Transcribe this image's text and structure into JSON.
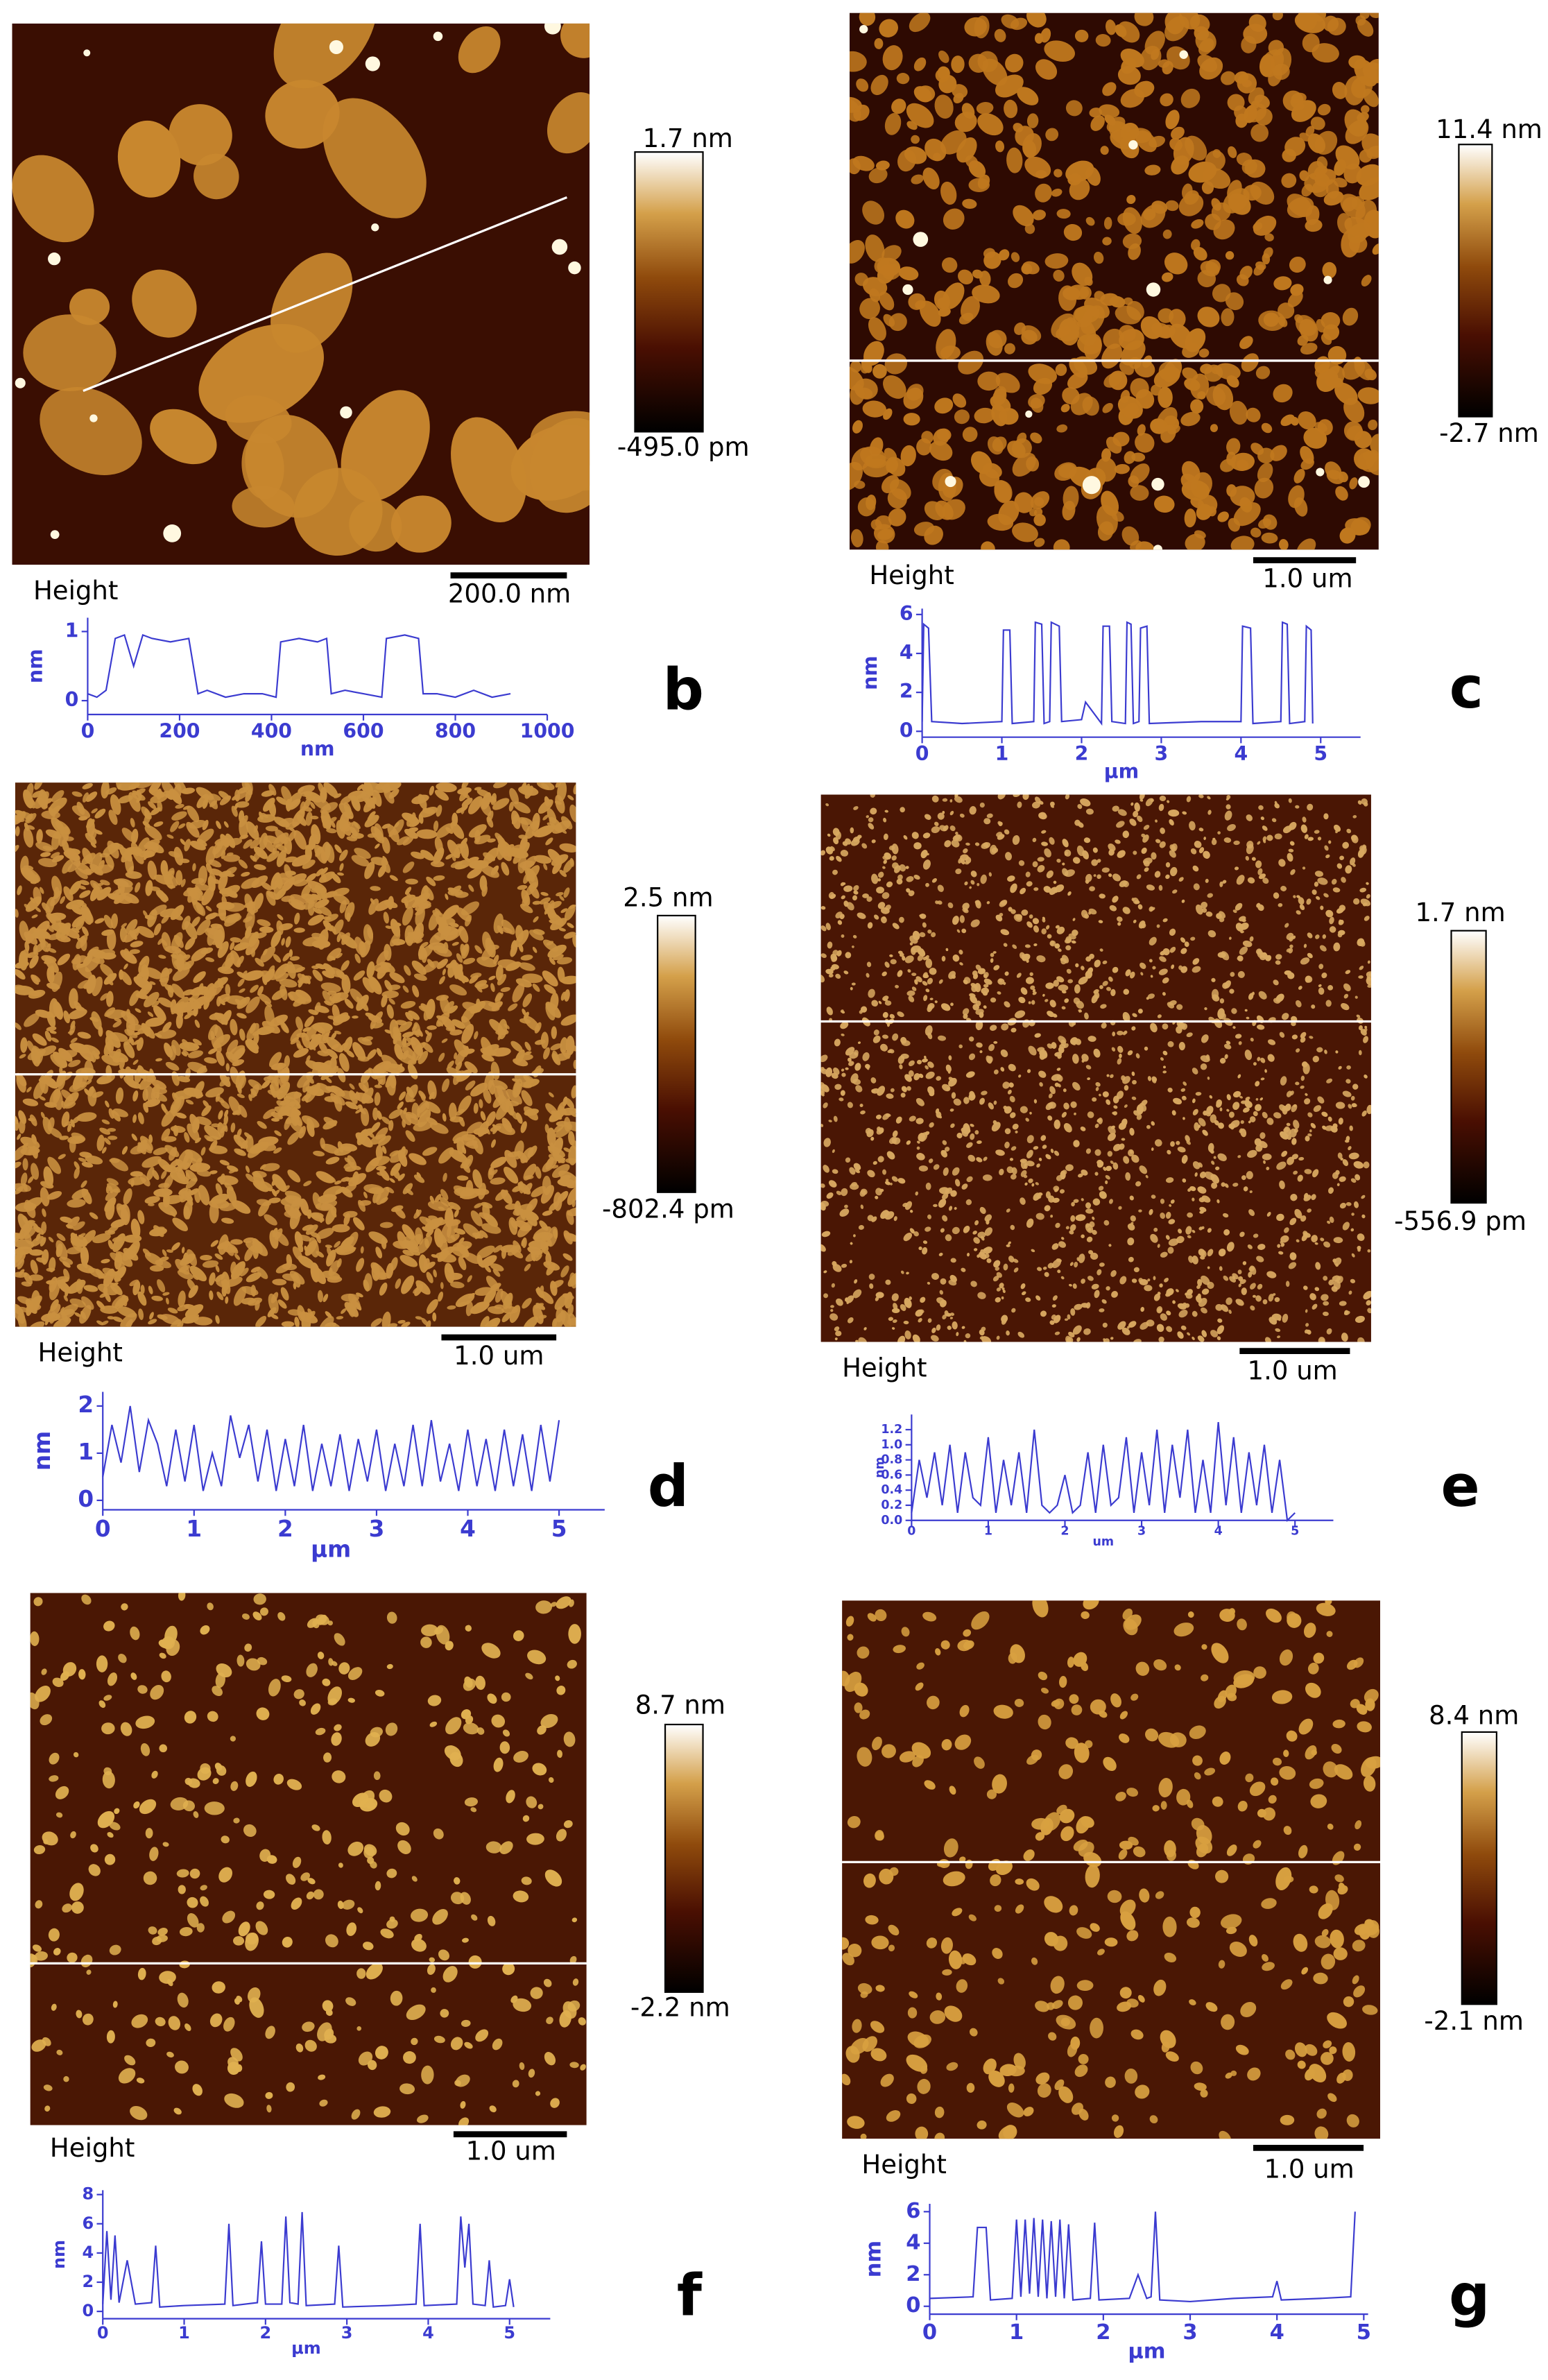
{
  "panels": [
    {
      "letter": "b",
      "height": "Height",
      "scalebar": "200.0 nm",
      "colorbar_max": "1.7 nm",
      "colorbar_min": "-495.0 pm"
    },
    {
      "letter": "c",
      "height": "Height",
      "scalebar": "1.0 um",
      "colorbar_max": "11.4 nm",
      "colorbar_min": "-2.7 nm"
    },
    {
      "letter": "d",
      "height": "Height",
      "scalebar": "1.0 um",
      "colorbar_max": "2.5 nm",
      "colorbar_min": "-802.4 pm"
    },
    {
      "letter": "e",
      "height": "Height",
      "scalebar": "1.0 um",
      "colorbar_max": "1.7 nm",
      "colorbar_min": "-556.9 pm"
    },
    {
      "letter": "f",
      "height": "Height",
      "scalebar": "1.0 um",
      "colorbar_max": "8.7 nm",
      "colorbar_min": "-2.2 nm"
    },
    {
      "letter": "g",
      "height": "Height",
      "scalebar": "1.0 um",
      "colorbar_max": "8.4 nm",
      "colorbar_min": "-2.1 nm"
    }
  ],
  "chart_data": [
    {
      "type": "line",
      "xlabel": "nm",
      "ylabel": "nm",
      "color": "#3b3bd0",
      "xlim": [
        0,
        1000
      ],
      "ylim": [
        -0.2,
        1.2
      ],
      "xticks": [
        0,
        200,
        400,
        600,
        800,
        1000
      ],
      "yticks": [
        0,
        1
      ],
      "x": [
        0,
        20,
        40,
        60,
        80,
        100,
        120,
        140,
        180,
        220,
        240,
        260,
        300,
        340,
        380,
        410,
        420,
        460,
        500,
        520,
        530,
        560,
        600,
        640,
        650,
        690,
        720,
        730,
        760,
        800,
        840,
        880,
        920
      ],
      "values": [
        0.1,
        0.05,
        0.15,
        0.9,
        0.95,
        0.5,
        0.95,
        0.9,
        0.85,
        0.9,
        0.1,
        0.15,
        0.05,
        0.1,
        0.1,
        0.05,
        0.85,
        0.9,
        0.85,
        0.9,
        0.1,
        0.15,
        0.1,
        0.05,
        0.9,
        0.95,
        0.9,
        0.1,
        0.1,
        0.05,
        0.15,
        0.05,
        0.1
      ]
    },
    {
      "type": "line",
      "xlabel": "µm",
      "ylabel": "nm",
      "color": "#3b3bd0",
      "xlim": [
        0,
        5.5
      ],
      "ylim": [
        -0.3,
        6.3
      ],
      "xticks": [
        0,
        1,
        2,
        3,
        4,
        5
      ],
      "yticks": [
        0,
        2,
        4,
        6
      ],
      "x": [
        0,
        0.02,
        0.08,
        0.12,
        0.5,
        1.0,
        1.02,
        1.1,
        1.13,
        1.4,
        1.42,
        1.5,
        1.53,
        1.6,
        1.62,
        1.72,
        1.75,
        2.0,
        2.05,
        2.25,
        2.27,
        2.35,
        2.38,
        2.55,
        2.57,
        2.62,
        2.65,
        2.72,
        2.74,
        2.82,
        2.85,
        3.5,
        4.0,
        4.02,
        4.12,
        4.15,
        4.5,
        4.52,
        4.58,
        4.61,
        4.8,
        4.82,
        4.88,
        4.9
      ],
      "values": [
        0.5,
        5.5,
        5.3,
        0.5,
        0.4,
        0.5,
        5.2,
        5.2,
        0.4,
        0.5,
        5.6,
        5.5,
        0.4,
        0.5,
        5.6,
        5.4,
        0.5,
        0.6,
        1.5,
        0.4,
        5.4,
        5.4,
        0.5,
        0.4,
        5.6,
        5.5,
        0.4,
        0.5,
        5.3,
        5.4,
        0.4,
        0.5,
        0.5,
        5.4,
        5.3,
        0.4,
        0.5,
        5.6,
        5.5,
        0.4,
        0.5,
        5.4,
        5.2,
        0.4
      ]
    },
    {
      "type": "line",
      "xlabel": "μm",
      "ylabel": "nm",
      "color": "#3b3bd0",
      "xlim": [
        0,
        5.5
      ],
      "ylim": [
        -0.2,
        2.3
      ],
      "xticks": [
        0,
        1,
        2,
        3,
        4,
        5
      ],
      "yticks": [
        0,
        1,
        2
      ],
      "x": [
        0,
        0.1,
        0.2,
        0.3,
        0.4,
        0.5,
        0.6,
        0.7,
        0.8,
        0.9,
        1.0,
        1.1,
        1.2,
        1.3,
        1.4,
        1.5,
        1.6,
        1.7,
        1.8,
        1.9,
        2.0,
        2.1,
        2.2,
        2.3,
        2.4,
        2.5,
        2.6,
        2.7,
        2.8,
        2.9,
        3.0,
        3.1,
        3.2,
        3.3,
        3.4,
        3.5,
        3.6,
        3.7,
        3.8,
        3.9,
        4.0,
        4.1,
        4.2,
        4.3,
        4.4,
        4.5,
        4.6,
        4.7,
        4.8,
        4.9,
        5.0
      ],
      "values": [
        0.5,
        1.6,
        0.8,
        2.0,
        0.6,
        1.7,
        1.2,
        0.3,
        1.5,
        0.4,
        1.6,
        0.2,
        1.0,
        0.3,
        1.8,
        0.9,
        1.6,
        0.4,
        1.5,
        0.2,
        1.3,
        0.3,
        1.6,
        0.2,
        1.2,
        0.3,
        1.4,
        0.2,
        1.3,
        0.4,
        1.5,
        0.2,
        1.2,
        0.3,
        1.6,
        0.3,
        1.7,
        0.4,
        1.2,
        0.2,
        1.5,
        0.3,
        1.3,
        0.2,
        1.5,
        0.3,
        1.4,
        0.2,
        1.6,
        0.4,
        1.7
      ]
    },
    {
      "type": "line",
      "xlabel": "um",
      "ylabel": "nm",
      "color": "#3b3bd0",
      "xlim": [
        0,
        5.5
      ],
      "ylim": [
        0,
        1.4
      ],
      "xticks": [
        0,
        1,
        2,
        3,
        4,
        5
      ],
      "yticks": [
        {
          "value": 0,
          "label": "0.0"
        },
        0.2,
        0.4,
        0.6,
        0.8,
        {
          "value": 1,
          "label": "1.0"
        },
        1.2
      ],
      "x": [
        0,
        0.1,
        0.2,
        0.3,
        0.4,
        0.5,
        0.6,
        0.7,
        0.8,
        0.9,
        1.0,
        1.1,
        1.2,
        1.3,
        1.4,
        1.5,
        1.6,
        1.7,
        1.8,
        1.9,
        2.0,
        2.1,
        2.2,
        2.3,
        2.4,
        2.5,
        2.6,
        2.7,
        2.8,
        2.9,
        3.0,
        3.1,
        3.2,
        3.3,
        3.4,
        3.5,
        3.6,
        3.7,
        3.8,
        3.9,
        4.0,
        4.1,
        4.2,
        4.3,
        4.4,
        4.5,
        4.6,
        4.7,
        4.8,
        4.9,
        5.0
      ],
      "values": [
        0.1,
        0.8,
        0.3,
        0.9,
        0.2,
        1.0,
        0.1,
        0.9,
        0.3,
        0.2,
        1.1,
        0.1,
        0.8,
        0.2,
        0.9,
        0.1,
        1.2,
        0.2,
        0.1,
        0.2,
        0.6,
        0.1,
        0.2,
        0.9,
        0.1,
        1.0,
        0.2,
        0.3,
        1.1,
        0.1,
        0.9,
        0.2,
        1.2,
        0.1,
        1.0,
        0.3,
        1.2,
        0.1,
        0.8,
        0.1,
        1.3,
        0.2,
        1.1,
        0.1,
        0.9,
        0.2,
        1.0,
        0.1,
        0.8,
        0.0,
        0.1
      ]
    },
    {
      "type": "line",
      "xlabel": "μm",
      "ylabel": "nm",
      "color": "#3b3bd0",
      "xlim": [
        0,
        5.5
      ],
      "ylim": [
        -0.5,
        8.3
      ],
      "xticks": [
        0,
        1,
        2,
        3,
        4,
        5
      ],
      "yticks": [
        0,
        2,
        4,
        6,
        8
      ],
      "x": [
        0,
        0.05,
        0.1,
        0.15,
        0.2,
        0.3,
        0.4,
        0.6,
        0.65,
        0.7,
        1.0,
        1.5,
        1.55,
        1.6,
        1.9,
        1.95,
        2.0,
        2.2,
        2.25,
        2.3,
        2.4,
        2.45,
        2.5,
        2.85,
        2.9,
        2.95,
        3.5,
        3.85,
        3.9,
        3.95,
        4.35,
        4.4,
        4.45,
        4.5,
        4.55,
        4.7,
        4.75,
        4.8,
        4.95,
        5.0,
        5.05
      ],
      "values": [
        0.5,
        5.5,
        0.8,
        5.2,
        0.6,
        3.5,
        0.5,
        0.6,
        4.5,
        0.3,
        0.4,
        0.5,
        6.0,
        0.4,
        0.6,
        4.8,
        0.5,
        0.5,
        6.5,
        0.6,
        0.5,
        6.8,
        0.4,
        0.5,
        4.5,
        0.3,
        0.4,
        0.5,
        6.0,
        0.4,
        0.5,
        6.5,
        3.0,
        6.0,
        0.5,
        0.4,
        3.5,
        0.3,
        0.4,
        2.2,
        0.3
      ]
    },
    {
      "type": "line",
      "xlabel": "μm",
      "ylabel": "nm",
      "color": "#3b3bd0",
      "xlim": [
        0,
        5.05
      ],
      "ylim": [
        -0.5,
        6.5
      ],
      "xticks": [
        0,
        1,
        2,
        3,
        4,
        5
      ],
      "yticks": [
        0,
        2,
        4,
        6
      ],
      "x": [
        0,
        0.5,
        0.55,
        0.65,
        0.7,
        0.95,
        1.0,
        1.05,
        1.1,
        1.15,
        1.2,
        1.25,
        1.3,
        1.35,
        1.4,
        1.45,
        1.5,
        1.55,
        1.6,
        1.65,
        1.85,
        1.9,
        1.95,
        2.3,
        2.4,
        2.5,
        2.55,
        2.6,
        2.65,
        3.0,
        3.5,
        3.95,
        4.0,
        4.05,
        4.5,
        4.85,
        4.9
      ],
      "values": [
        0.5,
        0.6,
        5.0,
        5.0,
        0.4,
        0.5,
        5.5,
        0.6,
        5.5,
        0.8,
        5.6,
        0.6,
        5.5,
        0.5,
        5.4,
        0.6,
        5.5,
        0.5,
        5.2,
        0.4,
        0.5,
        5.3,
        0.4,
        0.5,
        2.0,
        0.5,
        0.6,
        6.0,
        0.4,
        0.3,
        0.5,
        0.6,
        1.6,
        0.4,
        0.5,
        0.6,
        6.0
      ]
    }
  ]
}
